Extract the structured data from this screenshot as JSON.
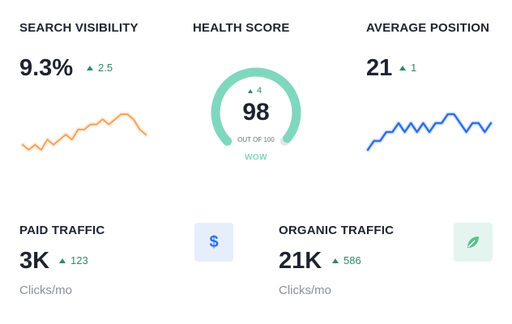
{
  "search_visibility": {
    "label": "SEARCH VISIBILITY",
    "value": "9.3%",
    "delta": "2.5",
    "sparkline": [
      3,
      2,
      3,
      2,
      4,
      3,
      4,
      5,
      4,
      6,
      6,
      7,
      7,
      8,
      7,
      8,
      9,
      9,
      8,
      6,
      5
    ]
  },
  "health_score": {
    "label": "HEALTH SCORE",
    "value": "98",
    "delta": "4",
    "out_of": "OUT OF 100",
    "verdict": "WOW",
    "fraction": 0.98
  },
  "average_position": {
    "label": "AVERAGE POSITION",
    "value": "21",
    "delta": "1",
    "sparkline": [
      2,
      3,
      3,
      4,
      4,
      5,
      4,
      5,
      4,
      5,
      4,
      5,
      5,
      6,
      6,
      5,
      4,
      5,
      5,
      4,
      5
    ]
  },
  "paid_traffic": {
    "label": "PAID TRAFFIC",
    "value": "3K",
    "delta": "123",
    "unit": "Clicks/mo",
    "icon": "dollar-icon"
  },
  "organic_traffic": {
    "label": "ORGANIC TRAFFIC",
    "value": "21K",
    "delta": "586",
    "unit": "Clicks/mo",
    "icon": "leaf-icon"
  },
  "colors": {
    "positive": "#2f8a63",
    "gauge": "#7fd8bd",
    "gauge_track": "#e3e5e8",
    "visibility_line": "#f3a35c",
    "position_line": "#2f6fe6",
    "paid_icon_bg": "#e6eefb",
    "paid_icon": "#2f6fe6",
    "organic_icon_bg": "#e3f5ee",
    "organic_icon": "#5cc08e"
  }
}
